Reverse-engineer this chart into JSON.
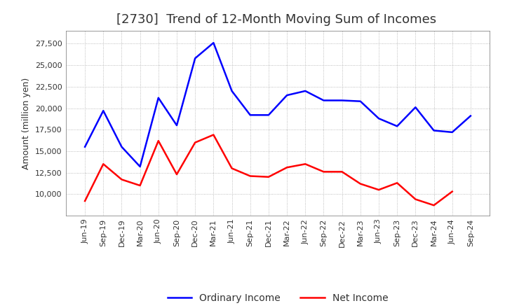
{
  "title": "[2730]  Trend of 12-Month Moving Sum of Incomes",
  "ylabel": "Amount (million yen)",
  "x_labels": [
    "Jun-19",
    "Sep-19",
    "Dec-19",
    "Mar-20",
    "Jun-20",
    "Sep-20",
    "Dec-20",
    "Mar-21",
    "Jun-21",
    "Sep-21",
    "Dec-21",
    "Mar-22",
    "Jun-22",
    "Sep-22",
    "Dec-22",
    "Mar-23",
    "Jun-23",
    "Sep-23",
    "Dec-23",
    "Mar-24",
    "Jun-24",
    "Sep-24"
  ],
  "ordinary_income": [
    15500,
    19700,
    15500,
    13200,
    21200,
    18000,
    25800,
    27600,
    22000,
    19200,
    19200,
    21500,
    22000,
    20900,
    20900,
    20800,
    18800,
    17900,
    20100,
    17400,
    17200,
    19100
  ],
  "net_income": [
    9200,
    13500,
    11700,
    11000,
    16200,
    12300,
    16000,
    16900,
    13000,
    12100,
    12000,
    13100,
    13500,
    12600,
    12600,
    11200,
    10500,
    11300,
    9400,
    8700,
    10300,
    null
  ],
  "ordinary_color": "#0000ff",
  "net_color": "#ff0000",
  "bg_color": "#ffffff",
  "plot_bg_color": "#ffffff",
  "grid_color": "#aaaaaa",
  "ylim_min": 7500,
  "ylim_max": 29000,
  "yticks": [
    10000,
    12500,
    15000,
    17500,
    20000,
    22500,
    25000,
    27500
  ],
  "legend_labels": [
    "Ordinary Income",
    "Net Income"
  ],
  "title_fontsize": 13,
  "axis_fontsize": 9,
  "tick_fontsize": 8,
  "line_width": 1.8,
  "title_color": "#333333"
}
